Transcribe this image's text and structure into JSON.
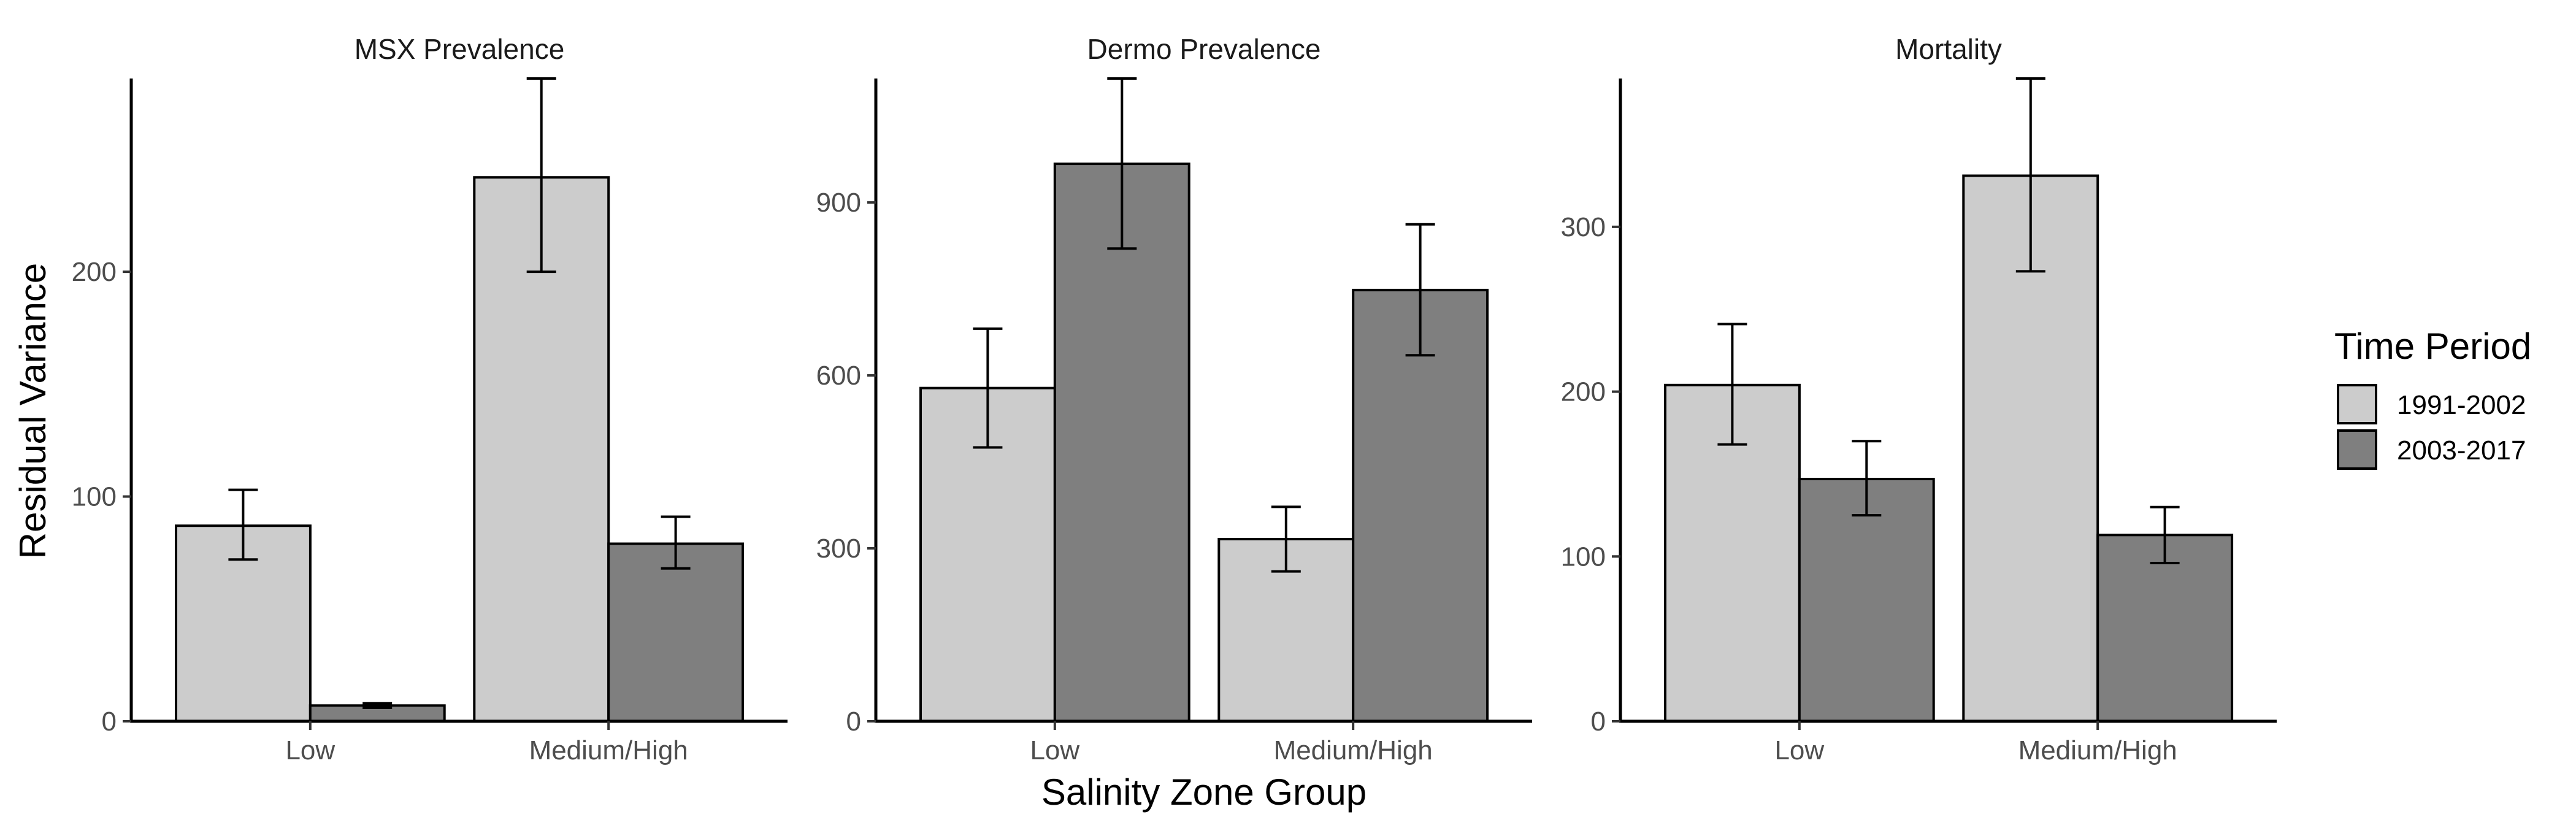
{
  "chart_data": {
    "type": "bar",
    "y_axis_title": "Residual Variance",
    "x_axis_title": "Salinity Zone Group",
    "legend": {
      "title": "Time Period",
      "placement": "right",
      "entries": [
        {
          "label": "1991-2002",
          "color": "#cccccc"
        },
        {
          "label": "2003-2017",
          "color": "#7f7f7f"
        }
      ]
    },
    "panels": [
      {
        "title": "MSX Prevalence",
        "categories": [
          "Low",
          "Medium/High"
        ],
        "ylim": [
          0,
          286
        ],
        "yticks": [
          0,
          100,
          200
        ],
        "series": [
          {
            "name": "1991-2002",
            "values": [
              87,
              242
            ],
            "lower": [
              72,
              200
            ],
            "upper": [
              103,
              286
            ]
          },
          {
            "name": "2003-2017",
            "values": [
              7,
              79
            ],
            "lower": [
              6,
              68
            ],
            "upper": [
              8,
              91
            ]
          }
        ]
      },
      {
        "title": "Dermo Prevalence",
        "categories": [
          "Low",
          "Medium/High"
        ],
        "ylim": [
          0,
          1115
        ],
        "yticks": [
          0,
          300,
          600,
          900
        ],
        "series": [
          {
            "name": "1991-2002",
            "values": [
              578,
              316
            ],
            "lower": [
              475,
              260
            ],
            "upper": [
              681,
              372
            ]
          },
          {
            "name": "2003-2017",
            "values": [
              967,
              748
            ],
            "lower": [
              820,
              635
            ],
            "upper": [
              1115,
              862
            ]
          }
        ]
      },
      {
        "title": "Mortality",
        "categories": [
          "Low",
          "Medium/High"
        ],
        "ylim": [
          0,
          390
        ],
        "yticks": [
          0,
          100,
          200,
          300
        ],
        "series": [
          {
            "name": "1991-2002",
            "values": [
              204,
              331
            ],
            "lower": [
              168,
              273
            ],
            "upper": [
              241,
              390
            ]
          },
          {
            "name": "2003-2017",
            "values": [
              147,
              113
            ],
            "lower": [
              125,
              96
            ],
            "upper": [
              170,
              130
            ]
          }
        ]
      }
    ]
  }
}
